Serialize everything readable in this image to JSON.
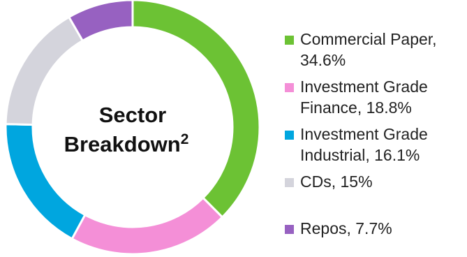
{
  "chart_data": {
    "type": "pie",
    "donut": true,
    "center_title": {
      "lines": [
        "Sector",
        "Breakdown"
      ],
      "superscript": "2"
    },
    "slices": [
      {
        "label": "Commercial Paper",
        "value": 34.6,
        "legend_lines": [
          "Commercial Paper,",
          "34.6%"
        ],
        "color": "#6cc234"
      },
      {
        "label": "Investment Grade Finance",
        "value": 18.8,
        "legend_lines": [
          "Investment Grade",
          "Finance, 18.8%"
        ],
        "color": "#f48fd7"
      },
      {
        "label": "Investment Grade Industrial",
        "value": 16.1,
        "legend_lines": [
          "Investment Grade",
          "Industrial, 16.1%"
        ],
        "color": "#00a6df"
      },
      {
        "label": "CDs",
        "value": 15,
        "legend_lines": [
          "CDs, 15%"
        ],
        "color": "#d4d4dc"
      },
      {
        "label": "Repos",
        "value": 7.7,
        "legend_lines": [
          "Repos, 7.7%"
        ],
        "color": "#9761c1"
      }
    ],
    "legend_placement": "right"
  }
}
